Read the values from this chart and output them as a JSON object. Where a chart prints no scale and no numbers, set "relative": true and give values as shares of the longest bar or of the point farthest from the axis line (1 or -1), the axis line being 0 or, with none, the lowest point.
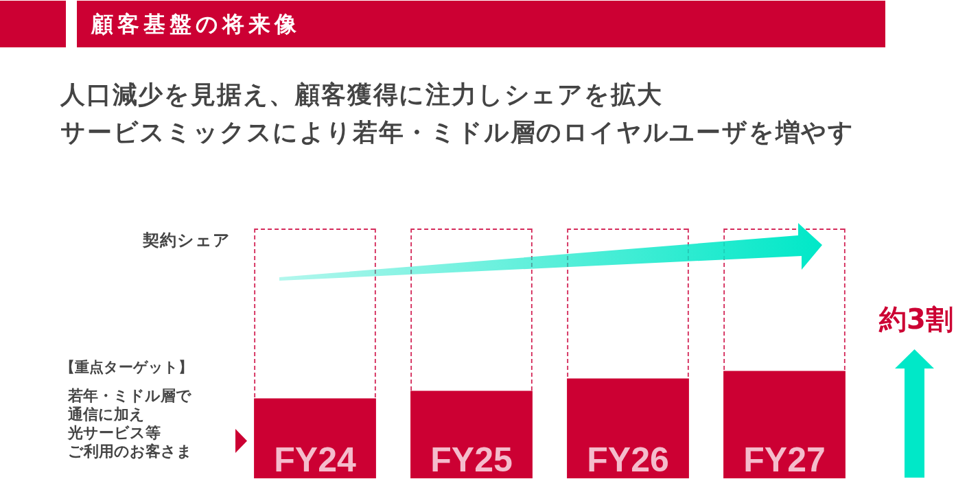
{
  "chart_data": {
    "type": "bar",
    "title": "顧客基盤の将来像",
    "subtitle": "人口減少を見据え、顧客獲得に注力しシェアを拡大",
    "ylabel": "契約シェア",
    "categories": [
      "FY24",
      "FY25",
      "FY26",
      "FY27"
    ],
    "stacked": true,
    "relative": true,
    "series": [
      {
        "color": "#cc0033",
        "values": [
          0.32,
          0.35,
          0.4,
          0.43
        ]
      },
      {
        "color": "#d42a5a",
        "line_style": "dashed",
        "values": [
          0.68,
          0.65,
          0.6,
          0.57
        ]
      }
    ],
    "annotations": [
      "サービスミックスにより若年・ミドル層のロイヤルユーザを増やす",
      "約3割",
      "【重点ターゲット】",
      "若年・ミドル層で",
      "通信に加え",
      "光サービス等",
      "ご利用のお客さま"
    ]
  }
}
